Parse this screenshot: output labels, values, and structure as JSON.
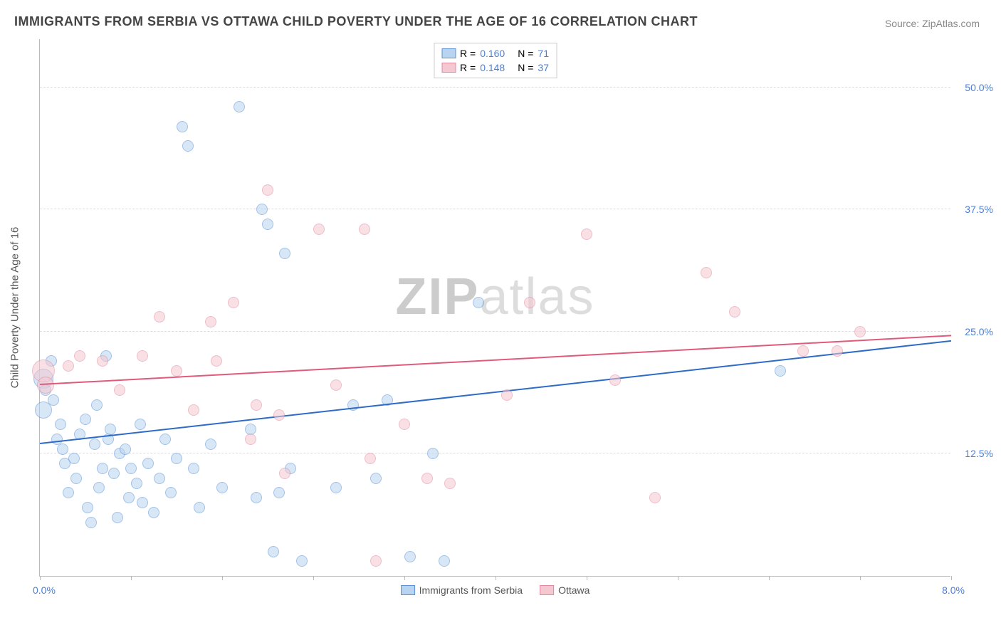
{
  "title": "IMMIGRANTS FROM SERBIA VS OTTAWA CHILD POVERTY UNDER THE AGE OF 16 CORRELATION CHART",
  "source": "Source: ZipAtlas.com",
  "yaxis_title": "Child Poverty Under the Age of 16",
  "watermark_a": "ZIP",
  "watermark_b": "atlas",
  "chart": {
    "type": "scatter",
    "xlim": [
      0,
      8
    ],
    "ylim": [
      0,
      55
    ],
    "yticks": [
      12.5,
      25.0,
      37.5,
      50.0
    ],
    "ytick_labels": [
      "12.5%",
      "25.0%",
      "37.5%",
      "50.0%"
    ],
    "xticks": [
      0,
      0.8,
      1.6,
      2.4,
      3.2,
      4.0,
      4.8,
      5.6,
      6.4,
      7.2,
      8.0
    ],
    "xlabel_min": "0.0%",
    "xlabel_max": "8.0%",
    "background_color": "#ffffff",
    "grid_color": "#dddddd",
    "axis_color": "#bbbbbb",
    "tick_label_color": "#4a7fd8",
    "marker_radius": 8,
    "marker_opacity": 0.55,
    "marker_border_width": 1.5
  },
  "series": [
    {
      "name": "Immigrants from Serbia",
      "fill": "#b8d4f0",
      "stroke": "#5b8fd6",
      "line_color": "#2e6bc7",
      "r_label": "R =",
      "r_value": "0.160",
      "n_label": "N =",
      "n_value": "71",
      "trend": {
        "x1": 0,
        "y1": 13.5,
        "x2": 8,
        "y2": 24.0
      },
      "points": [
        {
          "x": 0.03,
          "y": 20.2,
          "r": 14
        },
        {
          "x": 0.03,
          "y": 17.0,
          "r": 12
        },
        {
          "x": 0.05,
          "y": 19.0
        },
        {
          "x": 0.1,
          "y": 22.0
        },
        {
          "x": 0.12,
          "y": 18.0
        },
        {
          "x": 0.15,
          "y": 14.0
        },
        {
          "x": 0.18,
          "y": 15.5
        },
        {
          "x": 0.2,
          "y": 13.0
        },
        {
          "x": 0.22,
          "y": 11.5
        },
        {
          "x": 0.25,
          "y": 8.5
        },
        {
          "x": 0.3,
          "y": 12.0
        },
        {
          "x": 0.32,
          "y": 10.0
        },
        {
          "x": 0.35,
          "y": 14.5
        },
        {
          "x": 0.4,
          "y": 16.0
        },
        {
          "x": 0.42,
          "y": 7.0
        },
        {
          "x": 0.45,
          "y": 5.5
        },
        {
          "x": 0.48,
          "y": 13.5
        },
        {
          "x": 0.5,
          "y": 17.5
        },
        {
          "x": 0.52,
          "y": 9.0
        },
        {
          "x": 0.55,
          "y": 11.0
        },
        {
          "x": 0.58,
          "y": 22.5
        },
        {
          "x": 0.6,
          "y": 14.0
        },
        {
          "x": 0.62,
          "y": 15.0
        },
        {
          "x": 0.65,
          "y": 10.5
        },
        {
          "x": 0.68,
          "y": 6.0
        },
        {
          "x": 0.7,
          "y": 12.5
        },
        {
          "x": 0.75,
          "y": 13.0
        },
        {
          "x": 0.78,
          "y": 8.0
        },
        {
          "x": 0.8,
          "y": 11.0
        },
        {
          "x": 0.85,
          "y": 9.5
        },
        {
          "x": 0.88,
          "y": 15.5
        },
        {
          "x": 0.9,
          "y": 7.5
        },
        {
          "x": 0.95,
          "y": 11.5
        },
        {
          "x": 1.0,
          "y": 6.5
        },
        {
          "x": 1.05,
          "y": 10.0
        },
        {
          "x": 1.1,
          "y": 14.0
        },
        {
          "x": 1.15,
          "y": 8.5
        },
        {
          "x": 1.2,
          "y": 12.0
        },
        {
          "x": 1.25,
          "y": 46.0
        },
        {
          "x": 1.3,
          "y": 44.0
        },
        {
          "x": 1.35,
          "y": 11.0
        },
        {
          "x": 1.4,
          "y": 7.0
        },
        {
          "x": 1.5,
          "y": 13.5
        },
        {
          "x": 1.6,
          "y": 9.0
        },
        {
          "x": 1.75,
          "y": 48.0
        },
        {
          "x": 1.85,
          "y": 15.0
        },
        {
          "x": 1.9,
          "y": 8.0
        },
        {
          "x": 1.95,
          "y": 37.5
        },
        {
          "x": 2.0,
          "y": 36.0
        },
        {
          "x": 2.05,
          "y": 2.5
        },
        {
          "x": 2.1,
          "y": 8.5
        },
        {
          "x": 2.15,
          "y": 33.0
        },
        {
          "x": 2.2,
          "y": 11.0
        },
        {
          "x": 2.3,
          "y": 1.5
        },
        {
          "x": 2.6,
          "y": 9.0
        },
        {
          "x": 2.75,
          "y": 17.5
        },
        {
          "x": 2.95,
          "y": 10.0
        },
        {
          "x": 3.05,
          "y": 18.0
        },
        {
          "x": 3.25,
          "y": 2.0
        },
        {
          "x": 3.45,
          "y": 12.5
        },
        {
          "x": 3.55,
          "y": 1.5
        },
        {
          "x": 3.85,
          "y": 28.0
        },
        {
          "x": 6.5,
          "y": 21.0
        }
      ]
    },
    {
      "name": "Ottawa",
      "fill": "#f5c8d1",
      "stroke": "#e089a0",
      "line_color": "#e05a7a",
      "r_label": "R =",
      "r_value": "0.148",
      "n_label": "N =",
      "n_value": "37",
      "trend": {
        "x1": 0,
        "y1": 19.5,
        "x2": 8,
        "y2": 24.5
      },
      "points": [
        {
          "x": 0.03,
          "y": 21.0,
          "r": 16
        },
        {
          "x": 0.05,
          "y": 19.5,
          "r": 12
        },
        {
          "x": 0.25,
          "y": 21.5
        },
        {
          "x": 0.35,
          "y": 22.5
        },
        {
          "x": 0.55,
          "y": 22.0
        },
        {
          "x": 0.7,
          "y": 19.0
        },
        {
          "x": 0.9,
          "y": 22.5
        },
        {
          "x": 1.05,
          "y": 26.5
        },
        {
          "x": 1.2,
          "y": 21.0
        },
        {
          "x": 1.35,
          "y": 17.0
        },
        {
          "x": 1.5,
          "y": 26.0
        },
        {
          "x": 1.55,
          "y": 22.0
        },
        {
          "x": 1.7,
          "y": 28.0
        },
        {
          "x": 1.85,
          "y": 14.0
        },
        {
          "x": 1.9,
          "y": 17.5
        },
        {
          "x": 2.0,
          "y": 39.5
        },
        {
          "x": 2.1,
          "y": 16.5
        },
        {
          "x": 2.15,
          "y": 10.5
        },
        {
          "x": 2.45,
          "y": 35.5
        },
        {
          "x": 2.6,
          "y": 19.5
        },
        {
          "x": 2.85,
          "y": 35.5
        },
        {
          "x": 2.9,
          "y": 12.0
        },
        {
          "x": 2.95,
          "y": 1.5
        },
        {
          "x": 3.2,
          "y": 15.5
        },
        {
          "x": 3.4,
          "y": 10.0
        },
        {
          "x": 3.6,
          "y": 9.5
        },
        {
          "x": 4.1,
          "y": 18.5
        },
        {
          "x": 4.3,
          "y": 28.0
        },
        {
          "x": 4.8,
          "y": 35.0
        },
        {
          "x": 5.05,
          "y": 20.0
        },
        {
          "x": 5.4,
          "y": 8.0
        },
        {
          "x": 5.85,
          "y": 31.0
        },
        {
          "x": 6.1,
          "y": 27.0
        },
        {
          "x": 6.7,
          "y": 23.0
        },
        {
          "x": 7.0,
          "y": 23.0
        },
        {
          "x": 7.2,
          "y": 25.0
        }
      ]
    }
  ],
  "legend_bottom": [
    {
      "label": "Immigrants from Serbia"
    },
    {
      "label": "Ottawa"
    }
  ]
}
